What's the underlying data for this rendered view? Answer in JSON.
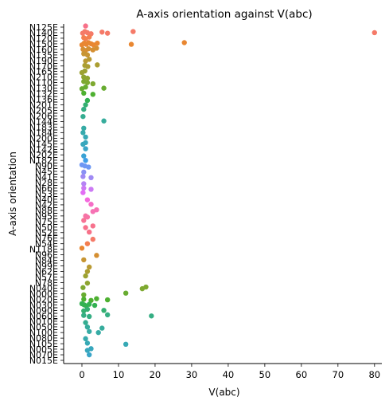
{
  "chart_data": {
    "type": "scatter",
    "title": "A-axis orientation against V(abc)",
    "xlabel": "V(abc)",
    "ylabel": "A-axis orientation",
    "xlim": [
      -5,
      82
    ],
    "xticks": [
      0,
      10,
      20,
      30,
      40,
      50,
      60,
      70,
      80
    ],
    "grid": false,
    "legend": "none",
    "categories": [
      "N125E",
      "N140E",
      "N120E",
      "N150E",
      "N160E",
      "N135E",
      "N190E",
      "N170E",
      "N165E",
      "N210E",
      "N110E",
      "N130E",
      "N132E",
      "N136E",
      "N201E",
      "N205E",
      "N206E",
      "N144E",
      "N183E",
      "N184E",
      "N200E",
      "N145E",
      "N142E",
      "N202E",
      "N182E",
      "N90E",
      "N45E",
      "N41E",
      "N28E",
      "N66E",
      "N53E",
      "N40E",
      "N42E",
      "N88E",
      "N95E",
      "N75E",
      "N50E",
      "N52E",
      "N76E",
      "N54E",
      "N118E",
      "N96E",
      "N84E",
      "N99E",
      "N62E",
      "N57E",
      "N78E",
      "N040E",
      "N000E",
      "N020E",
      "N030E",
      "N090E",
      "N060E",
      "N010E",
      "N050E",
      "N100E",
      "N080E",
      "N105E",
      "N005E",
      "N070E",
      "N015E"
    ],
    "colors": [
      "#f77189",
      "#f57a68",
      "#f47f50",
      "#e98731",
      "#d58f32",
      "#c79532",
      "#b99a32",
      "#ab9e32",
      "#9ca232",
      "#8ea531",
      "#7ea931",
      "#68ac31",
      "#4eb031",
      "#33b152",
      "#34af71",
      "#35ae83",
      "#35ad91",
      "#36ac9c",
      "#36aba5",
      "#37aaad",
      "#37a9b5",
      "#38a7bd",
      "#39a5c8",
      "#3aa2d4",
      "#3e9ee9",
      "#6e98f4",
      "#8a91f4",
      "#a08af4",
      "#b583f4",
      "#cc7af4",
      "#e26ef4",
      "#f569de",
      "#f56ec6",
      "#f672b4",
      "#f673a5",
      "#f77395",
      "#f7728d",
      "#f77189",
      "#f57a68",
      "#f47f50",
      "#e98731",
      "#d58f32",
      "#c79532",
      "#b99a32",
      "#ab9e32",
      "#9ca232",
      "#8ea531",
      "#7ea931",
      "#68ac31",
      "#4eb031",
      "#33b152",
      "#34af71",
      "#35ae83",
      "#35ad91",
      "#36ac9c",
      "#36aba5",
      "#37aaad",
      "#37a9b5",
      "#38a7bd",
      "#39a5c8",
      "#3aa2d4"
    ],
    "series": [
      {
        "category": "N125E",
        "values": [
          1.0
        ]
      },
      {
        "category": "N140E",
        "values": [
          0.2,
          0.8,
          1.5,
          2.5,
          5.5,
          7.0,
          14.0,
          80.0
        ]
      },
      {
        "category": "N120E",
        "values": [
          0.5,
          1.0,
          2.0
        ]
      },
      {
        "category": "N150E",
        "values": [
          0.0,
          0.6,
          1.2,
          1.8,
          2.5,
          3.2,
          4.2,
          13.5,
          28.0
        ]
      },
      {
        "category": "N160E",
        "values": [
          0.3,
          1.0,
          1.8,
          3.0,
          4.0
        ]
      },
      {
        "category": "N135E",
        "values": [
          0.5,
          1.5
        ]
      },
      {
        "category": "N190E",
        "values": [
          1.0,
          2.0
        ]
      },
      {
        "category": "N170E",
        "values": [
          0.8,
          1.6,
          4.2
        ]
      },
      {
        "category": "N165E",
        "values": [
          0.0,
          0.8
        ]
      },
      {
        "category": "N210E",
        "values": [
          0.5,
          1.5
        ]
      },
      {
        "category": "N110E",
        "values": [
          0.5,
          1.5,
          3.0
        ]
      },
      {
        "category": "N130E",
        "values": [
          0.0,
          1.0,
          6.0
        ]
      },
      {
        "category": "N132E",
        "values": [
          0.5,
          3.0
        ]
      },
      {
        "category": "N136E",
        "values": [
          1.5
        ]
      },
      {
        "category": "N201E",
        "values": [
          1.0
        ]
      },
      {
        "category": "N205E",
        "values": [
          0.5
        ]
      },
      {
        "category": "N206E",
        "values": [
          0.3
        ]
      },
      {
        "category": "N144E",
        "values": [
          6.0
        ]
      },
      {
        "category": "N183E",
        "values": [
          0.5
        ]
      },
      {
        "category": "N184E",
        "values": [
          0.3
        ]
      },
      {
        "category": "N200E",
        "values": [
          1.0
        ]
      },
      {
        "category": "N145E",
        "values": [
          0.3,
          1.0
        ]
      },
      {
        "category": "N142E",
        "values": [
          1.0
        ]
      },
      {
        "category": "N202E",
        "values": [
          0.5
        ]
      },
      {
        "category": "N182E",
        "values": [
          1.0
        ]
      },
      {
        "category": "N90E",
        "values": [
          0.0,
          0.8,
          1.8
        ]
      },
      {
        "category": "N45E",
        "values": [
          0.5
        ]
      },
      {
        "category": "N41E",
        "values": [
          0.3,
          2.5
        ]
      },
      {
        "category": "N28E",
        "values": [
          0.5
        ]
      },
      {
        "category": "N66E",
        "values": [
          0.5,
          2.5
        ]
      },
      {
        "category": "N53E",
        "values": [
          0.3
        ]
      },
      {
        "category": "N40E",
        "values": [
          1.5
        ]
      },
      {
        "category": "N42E",
        "values": [
          2.5
        ]
      },
      {
        "category": "N88E",
        "values": [
          3.0,
          4.0
        ]
      },
      {
        "category": "N95E",
        "values": [
          1.0,
          1.5
        ]
      },
      {
        "category": "N75E",
        "values": [
          0.5
        ]
      },
      {
        "category": "N50E",
        "values": [
          1.0,
          3.0
        ]
      },
      {
        "category": "N52E",
        "values": [
          2.0
        ]
      },
      {
        "category": "N76E",
        "values": [
          3.0
        ]
      },
      {
        "category": "N54E",
        "values": [
          1.5
        ]
      },
      {
        "category": "N118E",
        "values": [
          0.0
        ]
      },
      {
        "category": "N96E",
        "values": [
          4.0
        ]
      },
      {
        "category": "N84E",
        "values": [
          0.5
        ]
      },
      {
        "category": "N99E",
        "values": [
          2.0
        ]
      },
      {
        "category": "N62E",
        "values": [
          1.5
        ]
      },
      {
        "category": "N57E",
        "values": [
          1.0
        ]
      },
      {
        "category": "N78E",
        "values": [
          1.5
        ]
      },
      {
        "category": "N040E",
        "values": [
          0.3,
          16.5,
          17.5
        ]
      },
      {
        "category": "N000E",
        "values": [
          0.5,
          12.0
        ]
      },
      {
        "category": "N020E",
        "values": [
          0.5,
          2.5,
          4.0,
          7.0
        ]
      },
      {
        "category": "N030E",
        "values": [
          0.0,
          0.6,
          1.2,
          2.0,
          3.5
        ]
      },
      {
        "category": "N090E",
        "values": [
          0.5,
          1.5,
          6.0
        ]
      },
      {
        "category": "N060E",
        "values": [
          0.5,
          2.0,
          7.0,
          19.0
        ]
      },
      {
        "category": "N010E",
        "values": [
          1.0
        ]
      },
      {
        "category": "N050E",
        "values": [
          1.5,
          5.5
        ]
      },
      {
        "category": "N100E",
        "values": [
          2.0,
          4.5
        ]
      },
      {
        "category": "N080E",
        "values": [
          1.0
        ]
      },
      {
        "category": "N105E",
        "values": [
          1.5,
          12.0
        ]
      },
      {
        "category": "N005E",
        "values": [
          1.5,
          2.5
        ]
      },
      {
        "category": "N070E",
        "values": [
          2.0
        ]
      },
      {
        "category": "N015E",
        "values": []
      }
    ]
  }
}
